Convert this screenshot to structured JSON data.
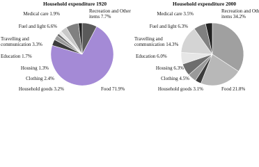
{
  "chart_data": [
    {
      "type": "pie",
      "title": "Household expenditure 1920",
      "categories": [
        "Recreation and Other items",
        "Food",
        "Household goods",
        "Clothing",
        "Housing",
        "Education",
        "Travelling and communication",
        "Fuel and light",
        "Medical care"
      ],
      "values": [
        7.7,
        71.9,
        3.2,
        2.4,
        1.3,
        1.7,
        3.3,
        6.6,
        1.9
      ],
      "value_labels": [
        "7.7%",
        "71.9%",
        "3.2%",
        "2.4%",
        "1.3%",
        "1.7%",
        "3.3%",
        "6.6%",
        "1.9%"
      ],
      "colors": [
        "#5a5a5a",
        "#a48ad6",
        "#3c3c3c",
        "#9a9a9a",
        "#6e6e6e",
        "#e6e6e6",
        "#c8c8c8",
        "#808080",
        "#222222"
      ]
    },
    {
      "type": "pie",
      "title": "Household expenditure 2000",
      "categories": [
        "Recreation and Other items",
        "Food",
        "Household goods",
        "Clothing",
        "Housing",
        "Education",
        "Travelling and communication",
        "Fuel and light",
        "Medical care"
      ],
      "values": [
        34.2,
        21.8,
        3.1,
        4.5,
        6.3,
        6.0,
        14.3,
        6.3,
        3.5
      ],
      "value_labels": [
        "34.2%",
        "21.8%",
        "3.1%",
        "4.5%",
        "6.3%",
        "6.0%",
        "14.3%",
        "6.3%",
        "3.5%"
      ],
      "colors": [
        "#a0a0a0",
        "#b8b8b8",
        "#3c3c3c",
        "#9a9a9a",
        "#6e6e6e",
        "#e6e6e6",
        "#d4d4d4",
        "#808080",
        "#222222"
      ]
    }
  ]
}
